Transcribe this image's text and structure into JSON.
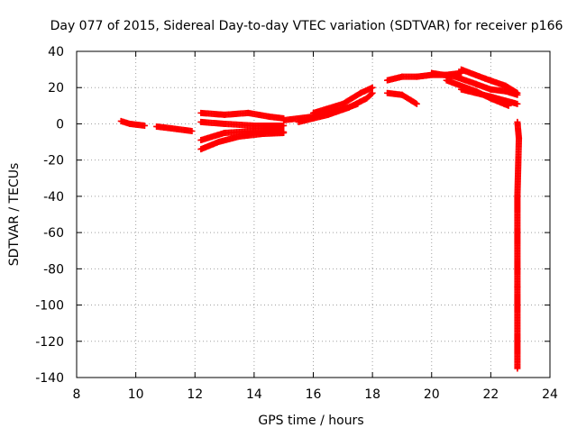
{
  "chart_data": {
    "type": "scatter",
    "title": "Day 077 of 2015, Sidereal Day-to-day VTEC variation (SDTVAR) for receiver p166",
    "xlabel": "GPS time / hours",
    "ylabel": "SDTVAR / TECUs",
    "xlim": [
      8,
      24
    ],
    "ylim": [
      -140,
      40
    ],
    "xticks": [
      8,
      10,
      12,
      14,
      16,
      18,
      20,
      22,
      24
    ],
    "yticks": [
      -140,
      -120,
      -100,
      -80,
      -60,
      -40,
      -20,
      0,
      20,
      40
    ],
    "grid": true,
    "marker": "plus",
    "color": "#ff0000",
    "series": [
      {
        "name": "arc-1",
        "points": [
          [
            9.5,
            1.5
          ],
          [
            9.8,
            0
          ],
          [
            10.3,
            -1
          ]
        ]
      },
      {
        "name": "arc-2",
        "points": [
          [
            10.7,
            -1.5
          ],
          [
            11.2,
            -2.5
          ],
          [
            11.9,
            -4
          ]
        ]
      },
      {
        "name": "arc-3",
        "points": [
          [
            12.2,
            6
          ],
          [
            13.0,
            5
          ],
          [
            13.8,
            6
          ],
          [
            14.5,
            4
          ],
          [
            15.0,
            3
          ]
        ]
      },
      {
        "name": "arc-4",
        "points": [
          [
            12.2,
            1
          ],
          [
            13.0,
            0
          ],
          [
            14.0,
            -1
          ],
          [
            15.0,
            -1
          ]
        ]
      },
      {
        "name": "arc-5",
        "points": [
          [
            12.2,
            -9
          ],
          [
            13.0,
            -5
          ],
          [
            14.0,
            -4
          ],
          [
            15.0,
            -4.5
          ]
        ]
      },
      {
        "name": "arc-6",
        "points": [
          [
            12.2,
            -14
          ],
          [
            12.8,
            -10
          ],
          [
            13.5,
            -7
          ],
          [
            14.3,
            -5.5
          ],
          [
            15.0,
            -5
          ]
        ]
      },
      {
        "name": "arc-7",
        "points": [
          [
            15.0,
            2
          ],
          [
            16.0,
            4
          ],
          [
            17.0,
            8
          ],
          [
            17.5,
            11
          ]
        ]
      },
      {
        "name": "arc-8",
        "points": [
          [
            15.5,
            1
          ],
          [
            16.5,
            5
          ],
          [
            17.2,
            9
          ],
          [
            17.8,
            14
          ],
          [
            18.0,
            17
          ]
        ]
      },
      {
        "name": "arc-9",
        "points": [
          [
            16.0,
            6
          ],
          [
            17.0,
            11
          ],
          [
            17.6,
            17
          ],
          [
            18.0,
            20
          ]
        ]
      },
      {
        "name": "arc-10",
        "points": [
          [
            18.5,
            17
          ],
          [
            19.0,
            16
          ],
          [
            19.3,
            13
          ],
          [
            19.5,
            11
          ]
        ]
      },
      {
        "name": "arc-11",
        "points": [
          [
            18.5,
            24
          ],
          [
            19.0,
            26
          ],
          [
            19.5,
            26
          ],
          [
            20.0,
            27
          ],
          [
            20.5,
            27
          ],
          [
            21.0,
            28
          ]
        ]
      },
      {
        "name": "arc-12",
        "points": [
          [
            20.0,
            28
          ],
          [
            20.8,
            26
          ],
          [
            21.5,
            22
          ],
          [
            22.0,
            19
          ],
          [
            22.5,
            18
          ],
          [
            22.9,
            16
          ]
        ]
      },
      {
        "name": "arc-13",
        "points": [
          [
            21.0,
            30
          ],
          [
            21.8,
            25
          ],
          [
            22.5,
            21
          ],
          [
            22.9,
            17
          ]
        ]
      },
      {
        "name": "arc-14",
        "points": [
          [
            20.5,
            24
          ],
          [
            21.5,
            18
          ],
          [
            22.0,
            14
          ],
          [
            22.6,
            10
          ]
        ]
      },
      {
        "name": "arc-15",
        "points": [
          [
            21.0,
            19
          ],
          [
            22.0,
            15
          ],
          [
            22.9,
            11
          ]
        ]
      },
      {
        "name": "arc-16",
        "points": [
          [
            22.9,
            1
          ],
          [
            22.95,
            -8
          ],
          [
            22.9,
            -40
          ],
          [
            22.9,
            -90
          ],
          [
            22.9,
            -135
          ]
        ]
      }
    ]
  }
}
